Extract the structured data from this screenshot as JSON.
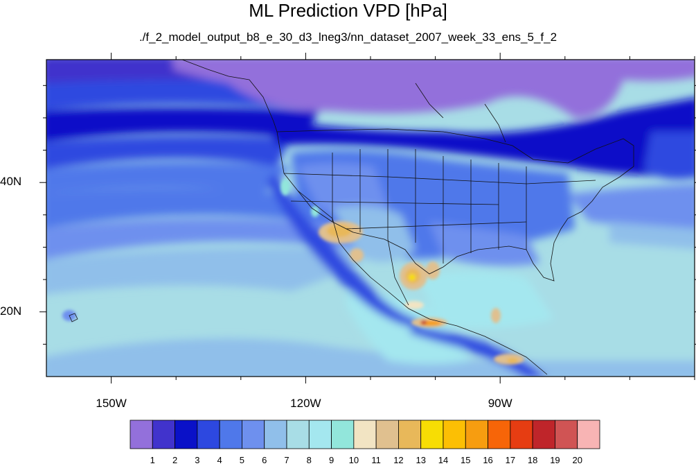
{
  "title": "ML Prediction VPD [hPa]",
  "subtitle": "./f_2_model_output_b8_e_30_d3_lneg3/nn_dataset_2007_week_33_ens_5_f_2",
  "map": {
    "lon_range": [
      -160,
      -60
    ],
    "lat_range": [
      10,
      59
    ],
    "lon_ticks": [
      {
        "value": -150,
        "label": "150W"
      },
      {
        "value": -120,
        "label": "120W"
      },
      {
        "value": -90,
        "label": "90W"
      }
    ],
    "lat_ticks": [
      {
        "value": 40,
        "label": "40N"
      },
      {
        "value": 20,
        "label": "20N"
      }
    ]
  },
  "colorbar": {
    "colors": [
      "#9370db",
      "#4133cc",
      "#0a11c8",
      "#2d48e0",
      "#4f78ea",
      "#6e90ee",
      "#90bfea",
      "#a8dde6",
      "#a4e7ef",
      "#92e6db",
      "#f2e4c3",
      "#e0c08f",
      "#e8b85a",
      "#f7dd04",
      "#fcbf04",
      "#f79d10",
      "#f76508",
      "#e63d12",
      "#bf252a",
      "#d05454",
      "#f8b4b4"
    ],
    "labels": [
      "1",
      "2",
      "3",
      "4",
      "5",
      "6",
      "7",
      "8",
      "9",
      "10",
      "11",
      "12",
      "13",
      "14",
      "15",
      "16",
      "17",
      "18",
      "19",
      "20"
    ]
  }
}
